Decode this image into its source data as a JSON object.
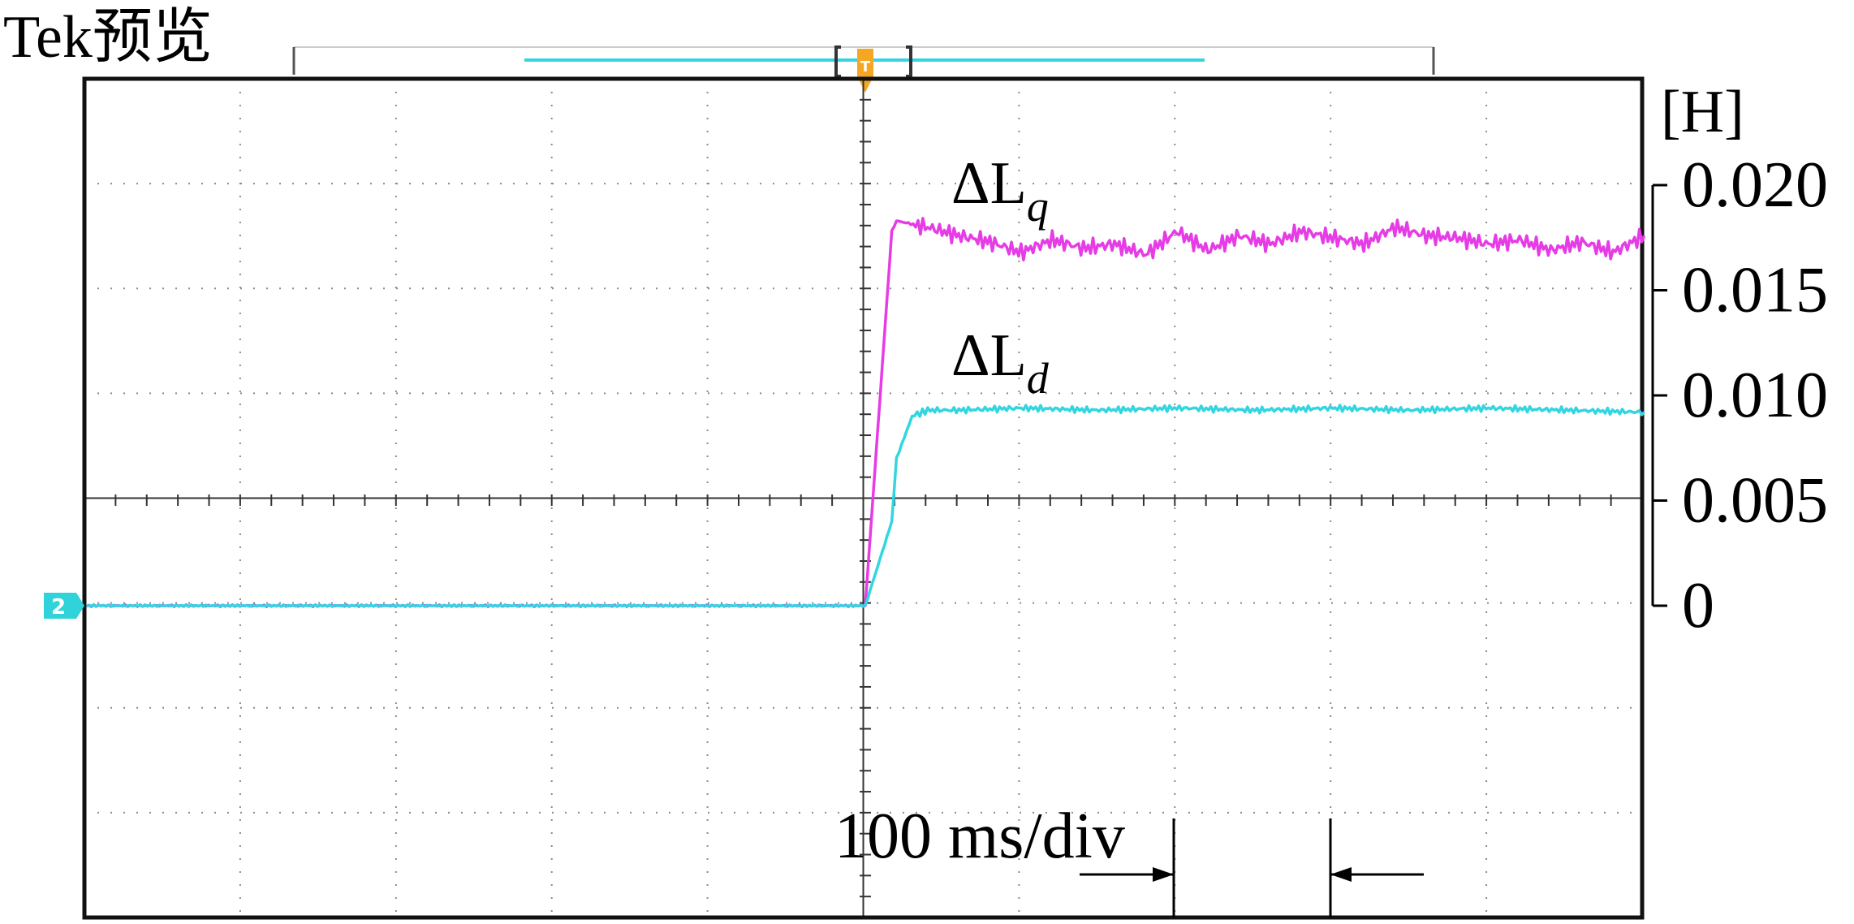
{
  "header": {
    "brand": "Tek",
    "mode": "预览",
    "trigger_marker": "T"
  },
  "channel_marker": {
    "label": "2"
  },
  "colors": {
    "lq_trace": "#e63ce6",
    "ld_trace": "#33d6e0",
    "grid": "#888888",
    "frame": "#111111",
    "marker": "#f5a623",
    "channel": "#2fd3d9"
  },
  "chart_data": {
    "type": "line",
    "title": "",
    "xlabel": "100 ms/div",
    "ylabel": "[H]",
    "x_unit": "ms",
    "x_per_div_ms": 100,
    "xlim": [
      -500,
      500
    ],
    "ylim": [
      0,
      0.02
    ],
    "y_ticks": [
      "0",
      "0.005",
      "0.010",
      "0.015",
      "0.020"
    ],
    "y_tick_values": [
      0,
      0.005,
      0.01,
      0.015,
      0.02
    ],
    "step_time_ms": 17,
    "series": [
      {
        "name": "ΔLq",
        "label_main": "ΔL",
        "label_sub": "q",
        "color": "#e63ce6",
        "x": [
          -500,
          0,
          17,
          20,
          40,
          60,
          80,
          100,
          120,
          140,
          160,
          180,
          200,
          220,
          240,
          260,
          280,
          300,
          320,
          340,
          360,
          380,
          400,
          420,
          440,
          460,
          480,
          500
        ],
        "y": [
          0,
          0,
          0.0178,
          0.0183,
          0.018,
          0.0176,
          0.0173,
          0.0168,
          0.0174,
          0.017,
          0.0172,
          0.0167,
          0.0178,
          0.0169,
          0.0176,
          0.0172,
          0.0178,
          0.0175,
          0.0172,
          0.018,
          0.0176,
          0.0175,
          0.0172,
          0.0174,
          0.0169,
          0.0173,
          0.0168,
          0.0176
        ]
      },
      {
        "name": "ΔLd",
        "label_main": "ΔL",
        "label_sub": "d",
        "color": "#33d6e0",
        "x": [
          -500,
          0,
          17,
          20,
          30,
          40,
          60,
          100,
          150,
          200,
          250,
          300,
          350,
          400,
          450,
          500
        ],
        "y": [
          0,
          0,
          0.004,
          0.007,
          0.009,
          0.0093,
          0.0093,
          0.0094,
          0.0093,
          0.0094,
          0.0093,
          0.0094,
          0.0093,
          0.0094,
          0.0093,
          0.0092
        ]
      }
    ]
  }
}
